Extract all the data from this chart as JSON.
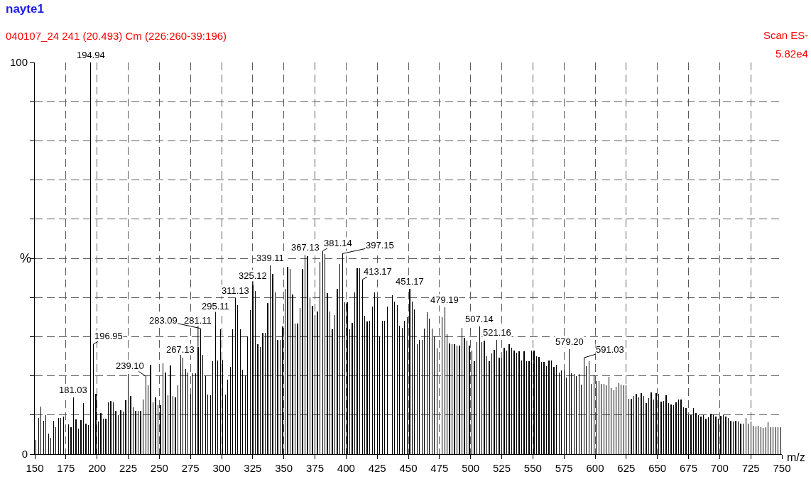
{
  "chart_data": {
    "type": "bar",
    "title": "nayte1",
    "subtitle": "040107_24 241 (20.493) Cm (226:260-39:196)",
    "xlabel": "m/z",
    "ylabel": "%",
    "x": [
      151,
      153,
      155,
      157,
      159,
      161,
      163,
      165,
      167,
      169,
      171,
      173,
      177,
      179,
      181.03,
      183,
      185,
      187,
      189,
      191,
      193,
      194.94,
      196.95,
      199,
      201,
      203,
      205,
      207,
      209,
      211,
      213,
      215,
      217,
      219,
      221,
      223,
      225,
      227,
      229,
      231,
      233,
      235,
      237,
      239.1,
      241,
      243,
      245,
      247,
      249,
      251,
      253,
      255,
      257,
      259,
      261,
      263,
      265,
      267.13,
      269,
      271,
      273,
      275,
      277,
      279,
      281.11,
      283.09,
      285,
      287,
      289,
      291,
      293,
      295.11,
      297,
      299,
      301,
      303,
      305,
      307,
      309,
      311.13,
      313,
      315,
      317,
      319,
      321,
      323,
      325.12,
      327,
      329,
      331,
      333,
      335,
      337,
      339.11,
      341,
      343,
      345,
      347,
      349,
      351,
      353,
      355,
      357,
      359,
      361,
      363,
      365,
      367.13,
      369,
      371,
      373,
      375,
      377,
      379,
      381.14,
      383,
      385,
      387,
      389,
      391,
      393,
      395,
      397.15,
      399,
      401,
      403,
      405,
      407,
      409,
      411,
      413.17,
      415,
      417,
      419,
      421,
      423,
      425,
      427,
      429,
      431,
      433,
      437,
      439,
      441,
      443,
      445,
      447,
      449,
      451.17,
      453,
      455,
      457,
      459,
      461,
      463,
      465,
      467,
      469,
      471,
      473,
      477,
      479.19,
      481,
      483,
      485,
      487,
      489,
      491,
      493,
      495,
      497,
      499,
      501,
      503,
      505,
      507.14,
      509,
      511,
      513,
      515,
      517,
      519,
      521.16,
      523,
      525,
      527,
      529,
      531,
      533,
      535,
      537,
      539,
      541,
      543,
      545,
      547,
      549,
      551,
      553,
      555,
      557,
      559,
      561,
      563,
      565,
      567,
      569,
      571,
      573,
      575,
      577,
      579.2,
      581,
      583,
      585,
      587,
      589,
      591.03,
      593,
      595,
      597,
      599,
      601,
      603,
      605,
      607,
      609,
      611,
      613,
      615,
      617,
      619,
      621,
      623,
      625,
      627,
      629,
      631,
      633,
      635,
      637,
      639,
      641,
      643,
      645,
      647,
      649,
      651,
      653,
      655,
      657,
      659,
      661,
      663,
      665,
      667,
      669,
      671,
      673,
      675,
      677,
      679,
      681,
      683,
      685,
      687,
      689,
      691,
      693,
      695,
      697,
      699,
      701,
      703,
      705,
      707,
      709,
      711,
      713,
      715,
      717,
      719,
      721,
      723,
      725,
      727,
      729,
      731,
      733,
      735,
      737,
      739,
      741,
      743,
      745,
      747,
      749
    ],
    "values": [
      3.6,
      9.3,
      12.2,
      8.6,
      9.9,
      5.3,
      4.2,
      8.6,
      6.9,
      9.3,
      9.3,
      9.6,
      7.7,
      6.9,
      14.5,
      8.9,
      6.6,
      8.7,
      13.1,
      7.8,
      7.5,
      100,
      28.1,
      15.4,
      8.4,
      10.5,
      9.0,
      9.0,
      13.3,
      13.6,
      13.3,
      11.1,
      9.9,
      11.3,
      10.8,
      13.7,
      20.5,
      14.8,
      11.9,
      11.0,
      11.0,
      11.0,
      14.0,
      19.9,
      17.6,
      22.9,
      13.3,
      14.5,
      12.5,
      12.5,
      23.2,
      20.8,
      15.1,
      22.6,
      14.8,
      14.5,
      17.5,
      23.3,
      24.7,
      21.7,
      20.8,
      15.4,
      20.6,
      20.6,
      27.4,
      32.1,
      25.3,
      20.0,
      15.2,
      15.1,
      23.8,
      32.6,
      24.0,
      31.9,
      24.1,
      15.2,
      19.0,
      22.2,
      31.8,
      39.9,
      38.0,
      31.8,
      21.5,
      20.2,
      30.0,
      36.7,
      43.1,
      41.7,
      28.0,
      27.4,
      31.0,
      31.0,
      38.6,
      48.1,
      46.1,
      41.3,
      29.1,
      29.1,
      32.7,
      42.3,
      47.9,
      47.3,
      40.7,
      33.3,
      33.3,
      37.3,
      47.3,
      50.9,
      50.6,
      40.1,
      37.8,
      35.5,
      36.4,
      49.1,
      51.9,
      51.1,
      41.1,
      36.4,
      31.9,
      35.5,
      42.3,
      48.6,
      51.2,
      38.7,
      38.7,
      31.9,
      33.6,
      41.3,
      47.5,
      47.5,
      44.6,
      35.4,
      33.9,
      34.0,
      37.7,
      41.3,
      39.9,
      30.1,
      34.0,
      34.0,
      37.7,
      40.5,
      39.0,
      38.0,
      32.8,
      32.2,
      34.0,
      35.0,
      42.2,
      38.9,
      37.0,
      28.0,
      29.1,
      29.1,
      32.1,
      36.3,
      34.6,
      32.1,
      30.0,
      27.0,
      34.9,
      37.5,
      30.7,
      28.3,
      28.1,
      28.0,
      27.8,
      27.7,
      32.2,
      29.8,
      29.0,
      27.7,
      26.4,
      23.7,
      28.6,
      32.7,
      28.6,
      28.9,
      25.0,
      23.7,
      25.8,
      26.7,
      29.1,
      24.7,
      24.7,
      27.2,
      26.4,
      28.1,
      27.1,
      26.5,
      25.9,
      26.3,
      24.0,
      26.3,
      23.8,
      23.8,
      26.4,
      26.5,
      25.0,
      24.9,
      23.5,
      23.5,
      22.4,
      23.9,
      23.9,
      22.3,
      22.9,
      20.8,
      21.4,
      21.4,
      19.5,
      26.9,
      20.7,
      20.5,
      19.9,
      20.5,
      17.8,
      24.6,
      22.4,
      23.7,
      17.9,
      20.3,
      18.7,
      18.6,
      17.9,
      17.9,
      17.5,
      19.7,
      16.9,
      16.3,
      17.3,
      18.2,
      17.8,
      17.6,
      17.5,
      14.2,
      14.2,
      14.8,
      15.4,
      14.5,
      15.5,
      14.9,
      13.0,
      14.3,
      15.8,
      13.9,
      15.5,
      15.4,
      13.4,
      13.6,
      15.1,
      13.1,
      12.7,
      12.5,
      13.3,
      13.9,
      13.9,
      11.9,
      11.7,
      9.9,
      9.9,
      11.7,
      10.5,
      9.9,
      9.6,
      9.9,
      9.0,
      9.5,
      10.4,
      10.2,
      9.6,
      9.0,
      9.8,
      9.9,
      9.6,
      9.2,
      8.6,
      8.4,
      8.6,
      8.4,
      7.8,
      7.8,
      9.3,
      7.8,
      8.4,
      7.3,
      7.1,
      7.2,
      6.9,
      6.7,
      6.9,
      8.1,
      6.9,
      6.9,
      6.9,
      6.9,
      6.9
    ],
    "color": "#000000",
    "xlim": [
      150,
      750
    ],
    "xticks": [
      150,
      175,
      200,
      225,
      250,
      275,
      300,
      325,
      350,
      375,
      400,
      425,
      450,
      475,
      500,
      525,
      550,
      575,
      600,
      625,
      650,
      675,
      700,
      725,
      750
    ],
    "ylim": [
      0,
      100
    ],
    "yticks": [
      0,
      {
        "value": 10,
        "label": null
      },
      {
        "value": 20,
        "label": null
      },
      {
        "value": 30,
        "label": null
      },
      {
        "value": 40,
        "label": null
      },
      {
        "value": 50,
        "label": null
      },
      {
        "value": 60,
        "label": null
      },
      {
        "value": 70,
        "label": null
      },
      {
        "value": 80,
        "label": null
      },
      {
        "value": 90,
        "label": null
      },
      100
    ],
    "grid": true,
    "annotations": [
      {
        "text": "181.03",
        "x": 181.03,
        "y": 14.5
      },
      {
        "text": "194.94",
        "x": 194.94,
        "y": 100
      },
      {
        "text": "196.95",
        "x": 196.95,
        "y": 28.1
      },
      {
        "text": "239.10",
        "x": 239.1,
        "y": 19.9
      },
      {
        "text": "267.13",
        "x": 267.13,
        "y": 23.3
      },
      {
        "text": "281.11",
        "x": 281.11,
        "y": 27.4
      },
      {
        "text": "283.09",
        "x": 283.09,
        "y": 32.1
      },
      {
        "text": "295.11",
        "x": 295.11,
        "y": 32.6
      },
      {
        "text": "311.13",
        "x": 311.13,
        "y": 39.9
      },
      {
        "text": "325.12",
        "x": 325.12,
        "y": 43.1
      },
      {
        "text": "339.11",
        "x": 339.11,
        "y": 48.1
      },
      {
        "text": "367.13",
        "x": 367.13,
        "y": 50.9
      },
      {
        "text": "381.14",
        "x": 381.14,
        "y": 51.9
      },
      {
        "text": "397.15",
        "x": 397.15,
        "y": 51.2
      },
      {
        "text": "413.17",
        "x": 413.17,
        "y": 44.6
      },
      {
        "text": "451.17",
        "x": 451.17,
        "y": 42.2
      },
      {
        "text": "479.19",
        "x": 479.19,
        "y": 37.5
      },
      {
        "text": "507.14",
        "x": 507.14,
        "y": 32.7
      },
      {
        "text": "521.16",
        "x": 521.16,
        "y": 29.1
      },
      {
        "text": "579.20",
        "x": 579.2,
        "y": 26.9
      },
      {
        "text": "591.03",
        "x": 591.03,
        "y": 24.6
      },
      "Scan ES-",
      "5.82e4"
    ]
  }
}
